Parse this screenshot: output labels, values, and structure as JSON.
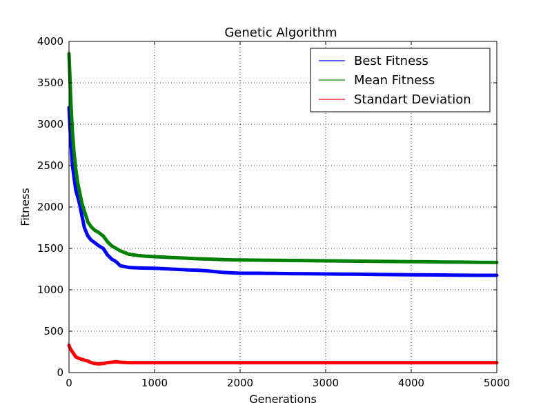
{
  "chart_data": {
    "type": "line",
    "title": "Genetic Algorithm",
    "xlabel": "Generations",
    "ylabel": "Fitness",
    "xlim": [
      0,
      5000
    ],
    "ylim": [
      0,
      4000
    ],
    "xticks": [
      0,
      1000,
      2000,
      3000,
      4000,
      5000
    ],
    "yticks": [
      0,
      500,
      1000,
      1500,
      2000,
      2500,
      3000,
      3500,
      4000
    ],
    "grid": true,
    "legend_position": "top-right",
    "series": [
      {
        "name": "Best Fitness",
        "color": "#0000ff",
        "x": [
          0,
          10,
          20,
          40,
          60,
          80,
          100,
          120,
          150,
          180,
          220,
          260,
          300,
          350,
          400,
          450,
          500,
          550,
          600,
          700,
          800,
          900,
          1000,
          1100,
          1200,
          1300,
          1400,
          1500,
          1600,
          1700,
          1800,
          1900,
          2000,
          2200,
          2400,
          2600,
          2800,
          3000,
          3200,
          3400,
          3600,
          3800,
          4000,
          4200,
          4400,
          4600,
          4800,
          5000
        ],
        "values": [
          3200,
          3000,
          2800,
          2500,
          2350,
          2200,
          2130,
          2050,
          1900,
          1750,
          1650,
          1600,
          1570,
          1530,
          1500,
          1420,
          1370,
          1340,
          1290,
          1270,
          1265,
          1262,
          1260,
          1255,
          1250,
          1245,
          1240,
          1237,
          1230,
          1220,
          1210,
          1205,
          1200,
          1200,
          1198,
          1195,
          1193,
          1192,
          1190,
          1188,
          1186,
          1183,
          1182,
          1180,
          1178,
          1176,
          1175,
          1175
        ]
      },
      {
        "name": "Mean Fitness",
        "color": "#008000",
        "x": [
          0,
          10,
          20,
          40,
          60,
          80,
          100,
          120,
          150,
          180,
          220,
          260,
          300,
          350,
          400,
          450,
          500,
          550,
          600,
          700,
          800,
          900,
          1000,
          1100,
          1200,
          1300,
          1400,
          1500,
          1600,
          1700,
          1800,
          1900,
          2000,
          2200,
          2400,
          2600,
          2800,
          3000,
          3200,
          3400,
          3600,
          3800,
          4000,
          4200,
          4400,
          4600,
          4800,
          5000
        ],
        "values": [
          3850,
          3600,
          3300,
          2900,
          2650,
          2450,
          2300,
          2200,
          2050,
          1950,
          1820,
          1760,
          1720,
          1690,
          1650,
          1580,
          1530,
          1500,
          1470,
          1430,
          1415,
          1405,
          1400,
          1395,
          1390,
          1385,
          1380,
          1375,
          1372,
          1368,
          1365,
          1362,
          1360,
          1358,
          1356,
          1354,
          1352,
          1350,
          1348,
          1346,
          1344,
          1342,
          1340,
          1338,
          1336,
          1334,
          1332,
          1330
        ]
      },
      {
        "name": "Standart Deviation",
        "color": "#ff0000",
        "x": [
          0,
          10,
          20,
          40,
          60,
          80,
          100,
          120,
          150,
          180,
          220,
          260,
          300,
          350,
          400,
          450,
          500,
          550,
          600,
          700,
          800,
          900,
          1000,
          1100,
          1200,
          1300,
          1400,
          1500,
          1600,
          1700,
          1800,
          1900,
          2000,
          2200,
          2400,
          2600,
          2800,
          3000,
          3200,
          3400,
          3600,
          3800,
          4000,
          4200,
          4400,
          4600,
          4800,
          5000
        ],
        "values": [
          330,
          300,
          280,
          250,
          220,
          190,
          180,
          170,
          160,
          150,
          140,
          120,
          110,
          105,
          110,
          120,
          125,
          130,
          125,
          120,
          120,
          120,
          120,
          120,
          120,
          120,
          120,
          120,
          120,
          120,
          120,
          120,
          120,
          120,
          120,
          120,
          120,
          120,
          120,
          120,
          120,
          120,
          120,
          120,
          120,
          120,
          120,
          120
        ]
      }
    ]
  }
}
